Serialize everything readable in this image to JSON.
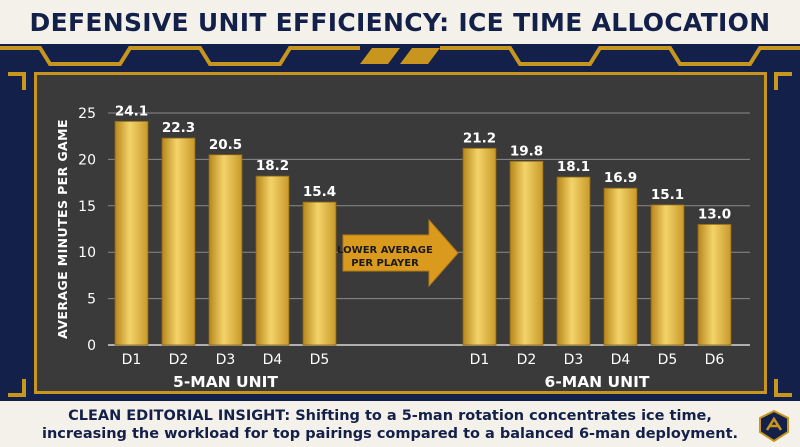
{
  "title": "DEFENSIVE UNIT EFFICIENCY: ICE TIME ALLOCATION",
  "caption": "CLEAN EDITORIAL INSIGHT: Shifting to a 5-man rotation concentrates ice time, increasing the workload for top pairings compared to a balanced 6-man deployment.",
  "arrow_label_line1": "LOWER AVERAGE",
  "arrow_label_line2": "PER PLAYER",
  "colors": {
    "navy": "#13204a",
    "gold": "#c8961e",
    "panel": "#3a3a3a",
    "bar_light": "#f3d46a",
    "bar_dark": "#b7861c"
  },
  "logo_icon": "shield-logo-icon",
  "chart_data": {
    "type": "bar",
    "ylabel": "AVERAGE MINUTES PER GAME",
    "ylim": [
      0,
      25
    ],
    "yticks": [
      0,
      5,
      10,
      15,
      20,
      25
    ],
    "grid": true,
    "groups": [
      {
        "name": "5-MAN UNIT",
        "categories": [
          "D1",
          "D2",
          "D3",
          "D4",
          "D5"
        ],
        "values": [
          24.1,
          22.3,
          20.5,
          18.2,
          15.4
        ]
      },
      {
        "name": "6-MAN UNIT",
        "categories": [
          "D1",
          "D2",
          "D3",
          "D4",
          "D5",
          "D6"
        ],
        "values": [
          21.2,
          19.8,
          18.1,
          16.9,
          15.1,
          13.0
        ]
      }
    ]
  }
}
